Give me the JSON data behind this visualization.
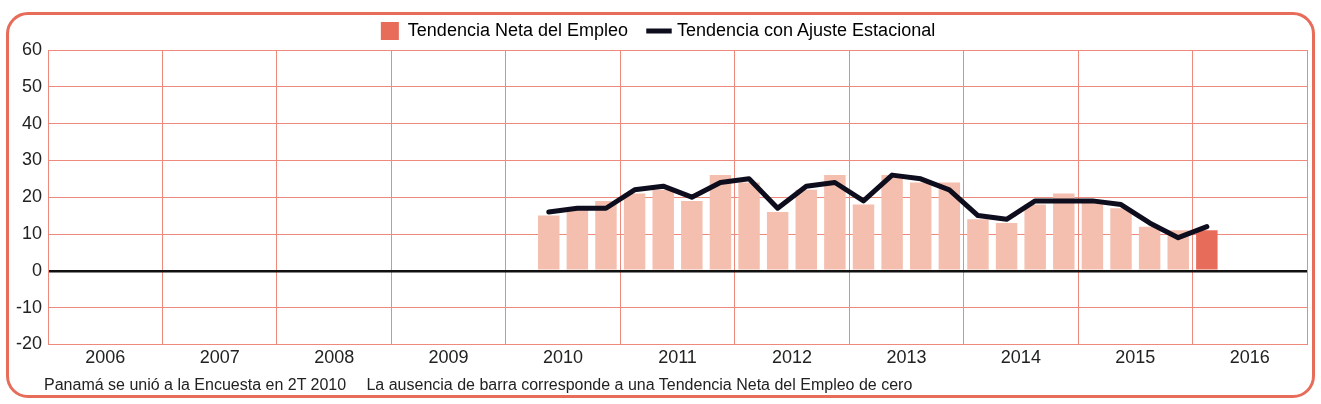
{
  "chart_data": {
    "type": "bar",
    "x": [
      2010.375,
      2010.625,
      2010.875,
      2011.125,
      2011.375,
      2011.625,
      2011.875,
      2012.125,
      2012.375,
      2012.625,
      2012.875,
      2013.125,
      2013.375,
      2013.625,
      2013.875,
      2014.125,
      2014.375,
      2014.625,
      2014.875,
      2015.125,
      2015.375,
      2015.625,
      2015.875,
      2016.125
    ],
    "series": [
      {
        "name": "Tendencia Neta del Empleo",
        "color": "#e76c5a",
        "colors": [
          "#f5bfb0",
          "#f5bfb0",
          "#f5bfb0",
          "#f5bfb0",
          "#f5bfb0",
          "#f5bfb0",
          "#f5bfb0",
          "#f5bfb0",
          "#f5bfb0",
          "#f5bfb0",
          "#f5bfb0",
          "#f5bfb0",
          "#f5bfb0",
          "#f5bfb0",
          "#f5bfb0",
          "#f5bfb0",
          "#f5bfb0",
          "#f5bfb0",
          "#f5bfb0",
          "#f5bfb0",
          "#f5bfb0",
          "#f5bfb0",
          "#f5bfb0",
          "#e76c5a"
        ],
        "values": [
          15,
          17,
          19,
          21,
          22,
          19,
          26,
          24,
          16,
          22,
          26,
          18,
          26,
          24,
          24,
          14,
          13,
          18,
          21,
          19,
          17,
          12,
          11,
          11
        ]
      },
      {
        "name": "Tendencia con Ajuste Estacional",
        "type": "line",
        "color": "#0d0d1e",
        "values": [
          16,
          17,
          17,
          22,
          23,
          20,
          24,
          25,
          17,
          23,
          24,
          19,
          26,
          25,
          22,
          15,
          14,
          19,
          19,
          19,
          18,
          13,
          9,
          12
        ]
      }
    ],
    "xlim": [
      2006,
      2017
    ],
    "xticks": [
      {
        "value": 2006.5,
        "label": "2006"
      },
      {
        "value": 2007.5,
        "label": "2007"
      },
      {
        "value": 2008.5,
        "label": "2008"
      },
      {
        "value": 2009.5,
        "label": "2009"
      },
      {
        "value": 2010.5,
        "label": "2010"
      },
      {
        "value": 2011.5,
        "label": "2011"
      },
      {
        "value": 2012.5,
        "label": "2012"
      },
      {
        "value": 2013.5,
        "label": "2013"
      },
      {
        "value": 2014.5,
        "label": "2014"
      },
      {
        "value": 2015.5,
        "label": "2015"
      },
      {
        "value": 2016.5,
        "label": "2016"
      }
    ],
    "ylim": [
      -20,
      60
    ],
    "yticks": [
      -20,
      -10,
      0,
      10,
      20,
      30,
      40,
      50,
      60
    ],
    "grid": true,
    "legend": "top",
    "marker": "none",
    "annotations": [
      "Panamá se unió a la Encuesta en 2T 2010",
      "La ausencia de barra corresponde a una Tendencia Neta del Empleo de cero"
    ]
  }
}
